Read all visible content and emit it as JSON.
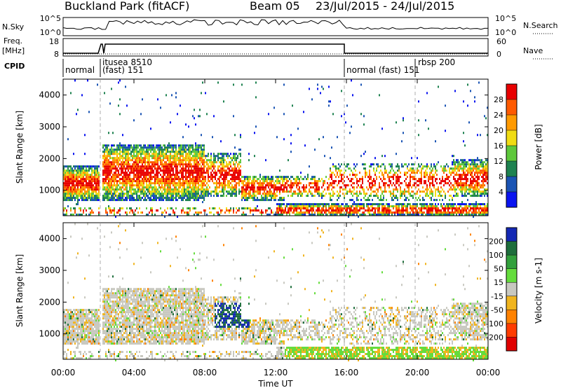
{
  "header": {
    "site": "Buckland Park (fitACF)",
    "beam": "Beam 05",
    "dates": "23/Jul/2015 - 24/Jul/2015"
  },
  "params": {
    "nsky_label": "N.Sky",
    "nsky_ticks": [
      "10^5",
      "10^0"
    ],
    "nsearch_label": "N.Search",
    "nsearch_ticks": [
      "10^5",
      "10^0"
    ],
    "freq_label": "Freq.",
    "freq_unit": "[MHz]",
    "freq_ticks": [
      "18",
      "8"
    ],
    "nave_label": "Nave",
    "nave_ticks": [
      "60",
      "0"
    ],
    "cpid_label": "CPID",
    "cpid_entries": [
      {
        "line1": "normal",
        "line2": ""
      },
      {
        "line1": "itusea 8510",
        "line2": "(fast) 151"
      },
      {
        "line1": "normal (fast) 151",
        "line2": ""
      },
      {
        "line1": "rbsp 200",
        "line2": ""
      }
    ]
  },
  "chart_data": [
    {
      "type": "heatmap",
      "ylabel": "Slant Range [km]",
      "y_ticks": [
        "1000",
        "2000",
        "3000",
        "4000"
      ],
      "ylim": [
        200,
        4500
      ],
      "colorbar": {
        "label": "Power [dB]",
        "ticks": [
          "4",
          "8",
          "12",
          "16",
          "20",
          "24",
          "28"
        ],
        "colors": [
          "#0a14f0",
          "#1a54b4",
          "#1e8250",
          "#5ec83c",
          "#f0dc14",
          "#ff9a00",
          "#ff5a00",
          "#e80000"
        ]
      }
    },
    {
      "type": "heatmap",
      "ylabel": "Slant Range [km]",
      "y_ticks": [
        "1000",
        "2000",
        "3000",
        "4000"
      ],
      "ylim": [
        200,
        4500
      ],
      "xlabel": "Time UT",
      "x_ticks": [
        "00:00",
        "04:00",
        "08:00",
        "12:00",
        "16:00",
        "20:00",
        "00:00"
      ],
      "colorbar": {
        "label": "Velocity [m s-1]",
        "ticks": [
          "200",
          "100",
          "50",
          "15",
          "-15",
          "-50",
          "-100",
          "-200"
        ],
        "colors": [
          "#1428b4",
          "#1e6e3c",
          "#32a03c",
          "#64dc3c",
          "#c8c8c0",
          "#f0b41e",
          "#ff8200",
          "#ff3c00",
          "#e00000"
        ]
      }
    }
  ]
}
